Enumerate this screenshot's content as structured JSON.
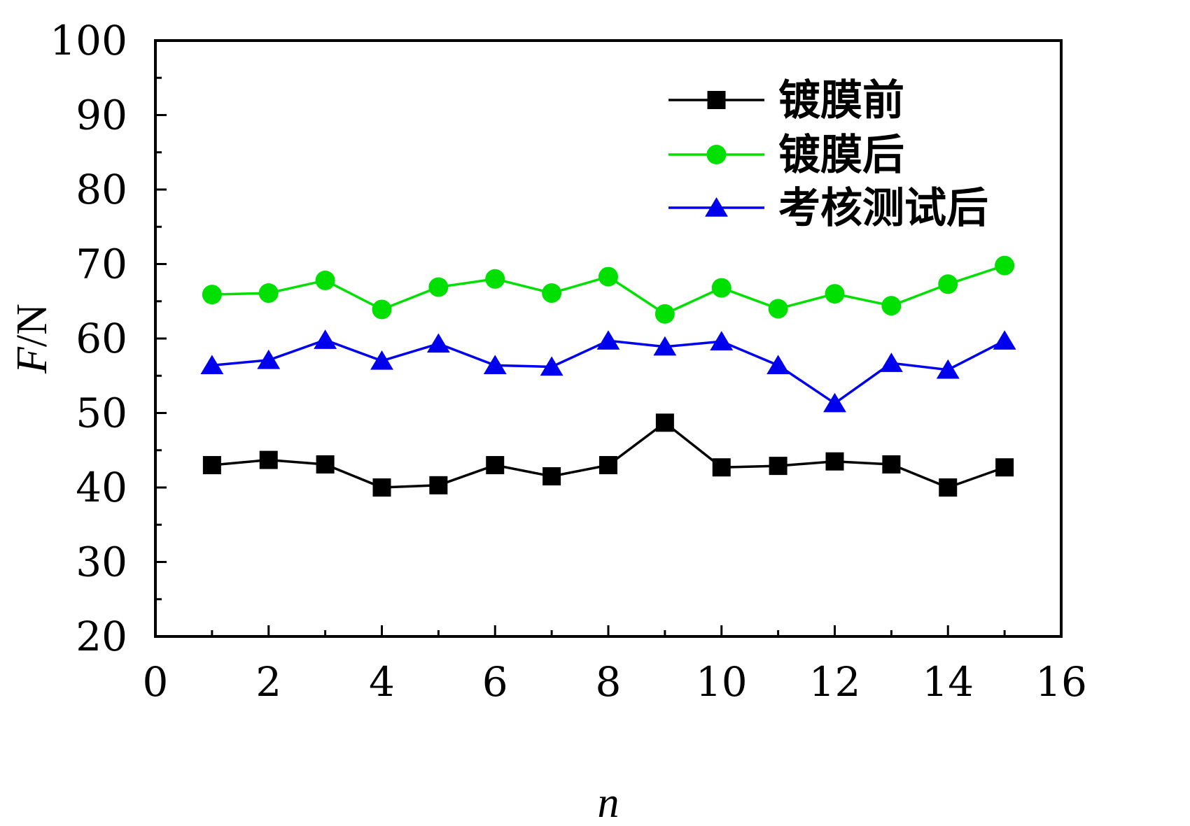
{
  "chart_data": {
    "type": "line",
    "xlabel": "n",
    "ylabel": "F/N",
    "xlim": [
      0,
      16
    ],
    "ylim": [
      20,
      100
    ],
    "xticks": [
      0,
      2,
      4,
      6,
      8,
      10,
      12,
      14,
      16
    ],
    "yticks": [
      20,
      30,
      40,
      50,
      60,
      70,
      80,
      90,
      100
    ],
    "grid": false,
    "legend_position": "top-right",
    "x": [
      1,
      2,
      3,
      4,
      5,
      6,
      7,
      8,
      9,
      10,
      11,
      12,
      13,
      14,
      15
    ],
    "series": [
      {
        "name": "镀膜前",
        "color": "#000000",
        "marker": "square",
        "values": [
          43.0,
          43.7,
          43.1,
          40.0,
          40.3,
          43.0,
          41.5,
          43.0,
          48.7,
          42.7,
          42.9,
          43.5,
          43.1,
          40.0,
          42.7
        ]
      },
      {
        "name": "镀膜后",
        "color": "#00e000",
        "marker": "circle",
        "values": [
          65.9,
          66.1,
          67.8,
          63.9,
          66.9,
          68.0,
          66.1,
          68.3,
          63.3,
          66.8,
          64.0,
          66.0,
          64.4,
          67.3,
          69.8
        ]
      },
      {
        "name": "考核测试后",
        "color": "#0000ee",
        "marker": "triangle",
        "values": [
          56.4,
          57.1,
          59.8,
          57.0,
          59.3,
          56.4,
          56.2,
          59.7,
          58.9,
          59.6,
          56.4,
          51.3,
          56.7,
          55.8,
          59.7
        ]
      }
    ]
  }
}
